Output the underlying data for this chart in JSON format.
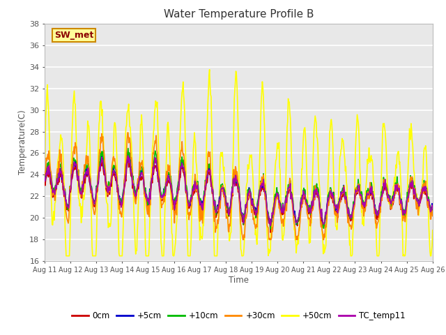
{
  "title": "Water Temperature Profile B",
  "xlabel": "Time",
  "ylabel": "Temperature(C)",
  "ylim": [
    16,
    38
  ],
  "xlim": [
    0,
    360
  ],
  "annotation": "SW_met",
  "series_labels": [
    "0cm",
    "+5cm",
    "+10cm",
    "+30cm",
    "+50cm",
    "TC_temp11"
  ],
  "series_colors": [
    "#cc0000",
    "#0000cc",
    "#00bb00",
    "#ff8800",
    "#ffff00",
    "#aa00aa"
  ],
  "series_linewidths": [
    1.2,
    1.2,
    1.2,
    1.2,
    1.2,
    1.2
  ],
  "xtick_labels": [
    "Aug 11",
    "Aug 12",
    "Aug 13",
    "Aug 14",
    "Aug 15",
    "Aug 16",
    "Aug 17",
    "Aug 18",
    "Aug 19",
    "Aug 20",
    "Aug 21",
    "Aug 22",
    "Aug 23",
    "Aug 24",
    "Aug 25",
    "Aug 26"
  ],
  "xtick_positions": [
    0,
    24,
    48,
    72,
    96,
    120,
    144,
    168,
    192,
    216,
    240,
    264,
    288,
    312,
    336,
    360
  ],
  "ytick_positions": [
    16,
    18,
    20,
    22,
    24,
    26,
    28,
    30,
    32,
    34,
    36,
    38
  ],
  "plot_bg_color": "#e8e8e8",
  "grid_color": "#ffffff",
  "font_color": "#555555"
}
